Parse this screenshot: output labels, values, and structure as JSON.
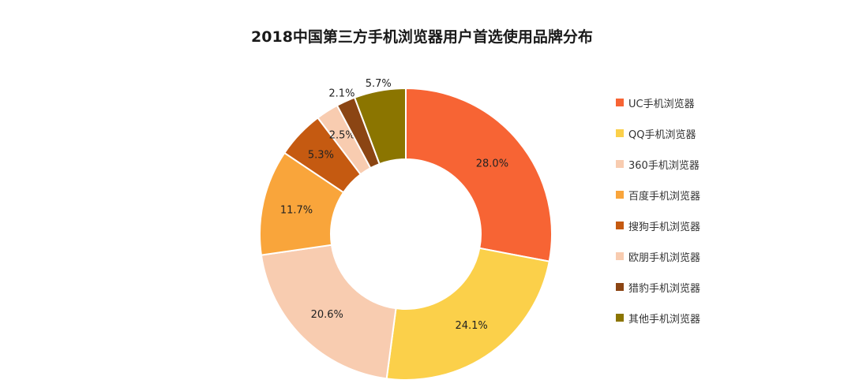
{
  "chart_data": {
    "type": "pie",
    "title": "2018中国第三方手机浏览器用户首选使用品牌分布",
    "categories": [
      "UC手机浏览器",
      "QQ手机浏览器",
      "360手机浏览器",
      "百度手机浏览器",
      "搜狗手机浏览器",
      "欧朋手机浏览器",
      "猎豹手机浏览器",
      "其他手机浏览器"
    ],
    "values": [
      28.0,
      24.1,
      20.6,
      11.7,
      5.3,
      2.5,
      2.1,
      5.7
    ],
    "data_labels": [
      "28.0%",
      "24.1%",
      "20.6%",
      "11.7%",
      "5.3%",
      "2.5%",
      "2.1%",
      "5.7%"
    ],
    "colors": [
      "#F76434",
      "#FBD04A",
      "#F8CCB0",
      "#F9A53B",
      "#C55A11",
      "#F8CCB0",
      "#8B4513",
      "#8B7500"
    ],
    "legend_position": "right",
    "donut": true
  }
}
